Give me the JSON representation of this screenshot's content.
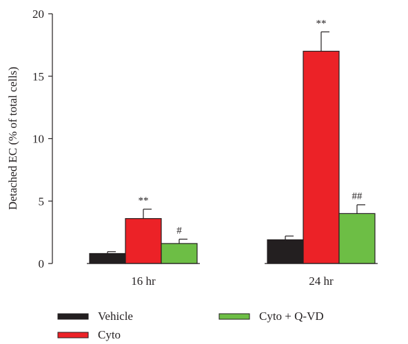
{
  "chart_data": {
    "type": "bar",
    "categories": [
      "16 hr",
      "24 hr"
    ],
    "series": [
      {
        "name": "Vehicle",
        "color": "#231f20",
        "values": [
          0.8,
          1.9
        ],
        "errors": [
          0.15,
          0.3
        ],
        "annotations": [
          "",
          ""
        ]
      },
      {
        "name": "Cyto",
        "color": "#ec2227",
        "values": [
          3.6,
          17.0
        ],
        "errors": [
          0.75,
          1.55
        ],
        "annotations": [
          "**",
          "**"
        ]
      },
      {
        "name": "Cyto + Q-VD",
        "color": "#6dbe45",
        "values": [
          1.6,
          4.0
        ],
        "errors": [
          0.35,
          0.7
        ],
        "annotations": [
          "#",
          "##"
        ]
      }
    ],
    "title": "",
    "xlabel": "",
    "ylabel": "Detached EC (% of total cells)",
    "ylim": [
      0,
      20
    ],
    "yticks": [
      "0",
      "5",
      "10",
      "15",
      "20"
    ],
    "grid": false,
    "legend_position": "bottom"
  }
}
